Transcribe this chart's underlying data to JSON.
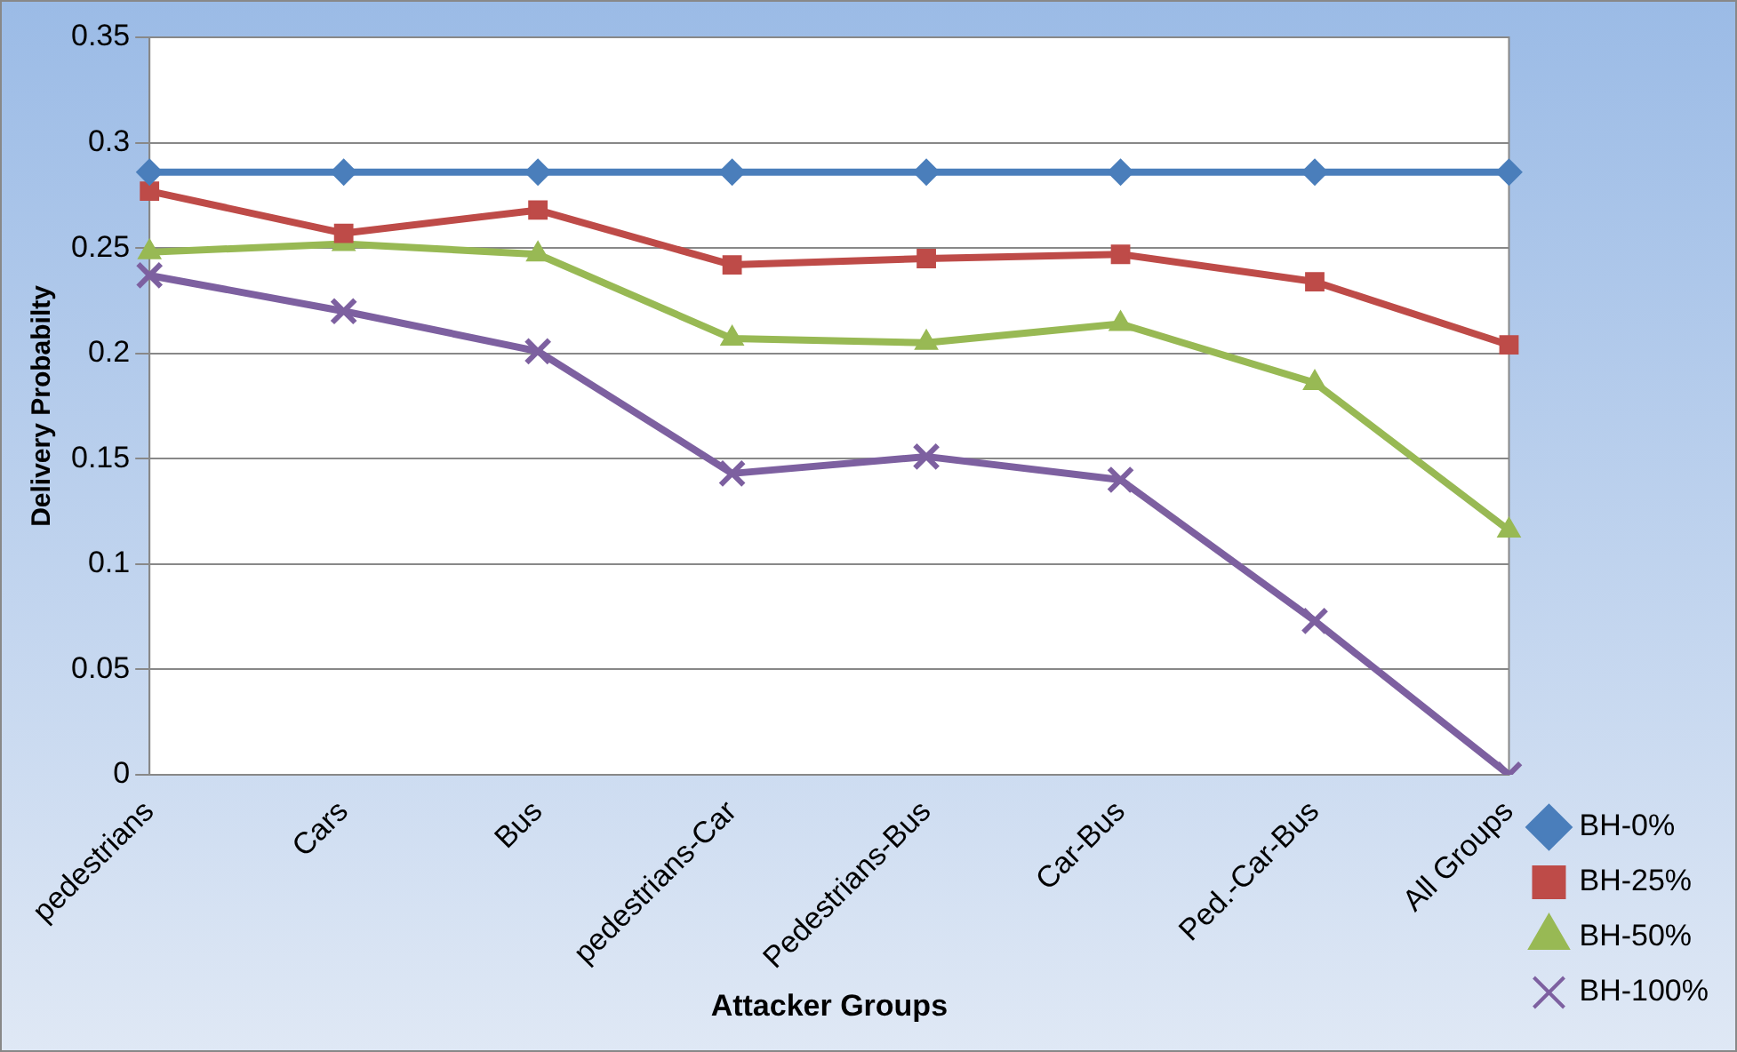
{
  "chart_data": {
    "type": "line",
    "xlabel": "Attacker Groups",
    "ylabel": "Delivery Probabilty",
    "categories": [
      "pedestrians",
      "Cars",
      "Bus",
      "pedestrians-Car",
      "Pedestrians-Bus",
      "Car-Bus",
      "Ped.-Car-Bus",
      "All Groups"
    ],
    "ylim": [
      0,
      0.35
    ],
    "yticks": [
      0,
      0.05,
      0.1,
      0.15,
      0.2,
      0.25,
      0.3,
      0.35
    ],
    "grid": "y",
    "legend": "bottom right",
    "line_style": "solid",
    "series": [
      {
        "name": "BH-0%",
        "color": "#4a7ebb",
        "marker": "diamond",
        "values": [
          0.286,
          0.286,
          0.286,
          0.286,
          0.286,
          0.286,
          0.286,
          0.286
        ]
      },
      {
        "name": "BH-25%",
        "color": "#be4b48",
        "marker": "square",
        "values": [
          0.277,
          0.257,
          0.268,
          0.242,
          0.245,
          0.247,
          0.234,
          0.204
        ]
      },
      {
        "name": "BH-50%",
        "color": "#98b954",
        "marker": "triangle",
        "values": [
          0.248,
          0.252,
          0.247,
          0.207,
          0.205,
          0.214,
          0.186,
          0.116
        ]
      },
      {
        "name": "BH-100%",
        "color": "#7d60a0",
        "marker": "cross",
        "values": [
          0.237,
          0.22,
          0.201,
          0.143,
          0.151,
          0.14,
          0.073,
          0
        ]
      }
    ]
  }
}
